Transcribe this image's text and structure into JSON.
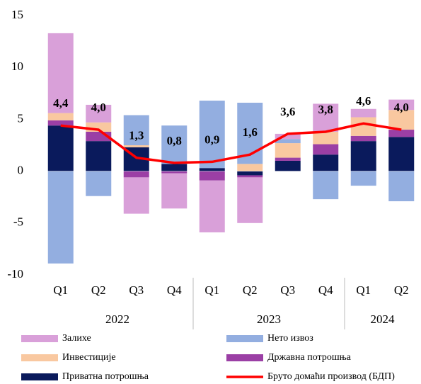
{
  "chart_data": {
    "type": "bar",
    "stacked": true,
    "groups": [
      {
        "label": "2022",
        "categories": [
          "Q1",
          "Q2",
          "Q3",
          "Q4"
        ]
      },
      {
        "label": "2023",
        "categories": [
          "Q1",
          "Q2",
          "Q3",
          "Q4"
        ]
      },
      {
        "label": "2024",
        "categories": [
          "Q1",
          "Q2"
        ]
      }
    ],
    "ylim": [
      -10,
      15
    ],
    "yticks": [
      -10,
      -5,
      0,
      5,
      10,
      15
    ],
    "series": [
      {
        "name": "Залихе",
        "color": "#d9a0d9",
        "values": [
          7.7,
          1.7,
          -3.5,
          -3.4,
          -5.0,
          -4.4,
          0.5,
          2.7,
          0.8,
          1.0
        ]
      },
      {
        "name": "Нето извоз",
        "color": "#93aee0",
        "values": [
          -8.9,
          -2.4,
          2.9,
          3.7,
          6.5,
          5.9,
          0.4,
          -2.7,
          -1.4,
          -2.9
        ]
      },
      {
        "name": "Инвестиције",
        "color": "#f9c8a0",
        "values": [
          0.7,
          0.9,
          0.2,
          0,
          0,
          0.7,
          1.4,
          1.2,
          1.8,
          1.9
        ]
      },
      {
        "name": "Државна потрошња",
        "color": "#9b3fa5",
        "values": [
          0.5,
          0.9,
          -0.6,
          -0.2,
          -0.9,
          -0.2,
          0.3,
          1.0,
          0.5,
          0.7
        ]
      },
      {
        "name": "Приватна потрошња",
        "color": "#0a1a5c",
        "values": [
          4.4,
          2.9,
          2.3,
          0.7,
          0.3,
          -0.4,
          1.0,
          1.6,
          2.9,
          3.3
        ]
      },
      {
        "name": "Бруто домаћи производ (БДП)",
        "color": "#ff0000",
        "type": "line",
        "values": [
          4.4,
          4.0,
          1.3,
          0.8,
          0.9,
          1.6,
          3.6,
          3.8,
          4.6,
          4.0
        ],
        "value_labels": [
          "4,4",
          "4,0",
          "1,3",
          "0,8",
          "0,9",
          "1,6",
          "3,6",
          "3,8",
          "4,6",
          "4,0"
        ]
      }
    ]
  }
}
